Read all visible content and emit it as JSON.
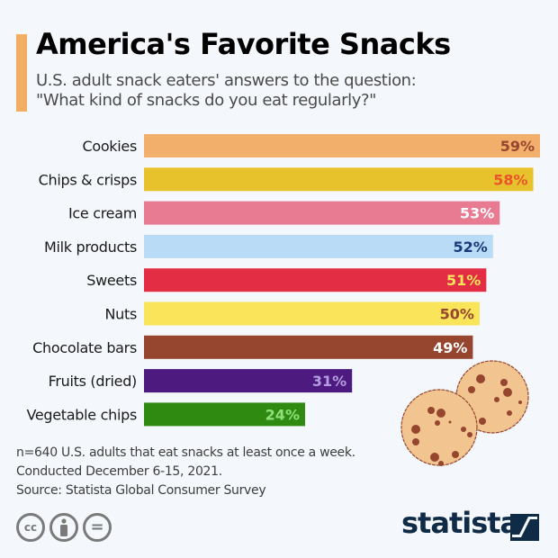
{
  "title": "America's Favorite Snacks",
  "subtitle_lines": [
    "U.S. adult snack eaters' answers to the question:",
    "\"What kind of snacks do you eat regularly?\""
  ],
  "chart_data": {
    "type": "bar",
    "orientation": "horizontal",
    "categories": [
      "Cookies",
      "Chips & crisps",
      "Ice cream",
      "Milk products",
      "Sweets",
      "Nuts",
      "Chocolate bars",
      "Fruits (dried)",
      "Vegetable chips"
    ],
    "values": [
      59,
      58,
      53,
      52,
      51,
      50,
      49,
      31,
      24
    ],
    "labels": [
      "59%",
      "58%",
      "53%",
      "52%",
      "51%",
      "50%",
      "49%",
      "31%",
      "24%"
    ],
    "unit": "%",
    "bar_colors": [
      "#f2ae6b",
      "#e8c22c",
      "#e87a92",
      "#b9dbf5",
      "#e22d45",
      "#fae45a",
      "#96462e",
      "#4d1a7f",
      "#2e8a10"
    ],
    "label_colors": [
      "#96462e",
      "#e8552a",
      "#ffffff",
      "#1a3a7a",
      "#fae45a",
      "#96462e",
      "#ffffff",
      "#b49ce0",
      "#8fe07a"
    ],
    "grid": false,
    "legend": "none"
  },
  "notes": [
    "n=640 U.S. adults that eat snacks at least once a week.",
    "Conducted December 6-15, 2021.",
    "Source: Statista Global Consumer Survey"
  ],
  "license_icons": [
    "cc-icon",
    "attribution-icon",
    "no-derivatives-icon"
  ],
  "license_glyphs": {
    "cc": "cc",
    "nd": "="
  },
  "brand": "statista"
}
